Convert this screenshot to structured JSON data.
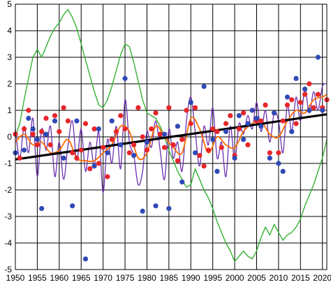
{
  "chart_data": {
    "type": "line",
    "title": "",
    "xlabel": "",
    "ylabel": "",
    "xlim": [
      1950,
      2021
    ],
    "ylim": [
      -5,
      5
    ],
    "grid": true,
    "x_ticks": [
      "1950",
      "1955",
      "1960",
      "1965",
      "1970",
      "1975",
      "1980",
      "1985",
      "1990",
      "1995",
      "2000",
      "2005",
      "2010",
      "2015",
      "2020"
    ],
    "y_ticks": [
      "5",
      "4",
      "3",
      "2",
      "1",
      "0",
      "-1",
      "-2",
      "-3",
      "-4",
      "-5"
    ],
    "colors": {
      "green": "#33b233",
      "purple": "#6b2fb0",
      "orange": "#ff6a00",
      "red": "#e8262a",
      "blue": "#2f49b5",
      "trend": "#000000",
      "grid": "#000000"
    },
    "series": [
      {
        "style": "line-green",
        "x": [
          1950,
          1951,
          1952,
          1953,
          1954,
          1955,
          1956,
          1957,
          1958,
          1959,
          1960,
          1961,
          1962,
          1963,
          1964,
          1965,
          1966,
          1967,
          1968,
          1969,
          1970,
          1971,
          1972,
          1973,
          1974,
          1975,
          1976,
          1977,
          1978,
          1979,
          1980,
          1981,
          1982,
          1983,
          1984,
          1985,
          1986,
          1987,
          1988,
          1989,
          1990,
          1991,
          1992,
          1993,
          1994,
          1995,
          1996,
          1997,
          1998,
          1999,
          2000,
          2001,
          2002,
          2003,
          2004,
          2005,
          2006,
          2007,
          2008,
          2009,
          2010,
          2011,
          2012,
          2013,
          2014,
          2015,
          2016,
          2017,
          2018,
          2019,
          2020,
          2021
        ],
        "y": [
          0.0,
          0.5,
          1.4,
          2.2,
          3.0,
          3.3,
          3.0,
          3.4,
          3.8,
          4.1,
          4.3,
          4.6,
          4.8,
          4.5,
          4.1,
          3.5,
          2.9,
          2.3,
          1.7,
          1.2,
          1.1,
          1.4,
          1.9,
          2.5,
          3.1,
          3.5,
          3.4,
          2.8,
          2.1,
          1.4,
          0.9,
          0.8,
          0.7,
          0.4,
          0.0,
          -0.5,
          -0.9,
          -1.3,
          -1.6,
          -1.9,
          -1.8,
          -1.2,
          -1.6,
          -2.0,
          -2.3,
          -2.7,
          -3.2,
          -3.6,
          -4.0,
          -4.3,
          -4.7,
          -4.5,
          -4.3,
          -4.5,
          -4.6,
          -4.3,
          -3.8,
          -3.4,
          -3.7,
          -3.3,
          -3.6,
          -3.9,
          -3.7,
          -3.6,
          -3.4,
          -3.1,
          -2.6,
          -2.2,
          -1.8,
          -1.3,
          -0.8,
          -0.1
        ]
      },
      {
        "style": "line-purple",
        "x": [
          1950,
          1951,
          1952,
          1953,
          1954,
          1955,
          1956,
          1957,
          1958,
          1959,
          1960,
          1961,
          1962,
          1963,
          1964,
          1965,
          1966,
          1967,
          1968,
          1969,
          1970,
          1971,
          1972,
          1973,
          1974,
          1975,
          1976,
          1977,
          1978,
          1979,
          1980,
          1981,
          1982,
          1983,
          1984,
          1985,
          1986,
          1987,
          1988,
          1989,
          1990,
          1991,
          1992,
          1993,
          1994,
          1995,
          1996,
          1997,
          1998,
          1999,
          2000,
          2001,
          2002,
          2003,
          2004,
          2005,
          2006,
          2007,
          2008,
          2009,
          2010,
          2011,
          2012,
          2013,
          2014,
          2015,
          2016,
          2017,
          2018,
          2019,
          2020,
          2021
        ],
        "y": [
          0.3,
          -0.8,
          0.4,
          -0.6,
          0.7,
          -1.5,
          0.3,
          -0.5,
          0.4,
          -1.5,
          -0.2,
          -1.6,
          -0.3,
          0.6,
          -0.9,
          0.3,
          -1.3,
          -0.2,
          -1.1,
          0.2,
          -2.1,
          -0.1,
          -1.0,
          0.4,
          -1.2,
          1.4,
          -0.2,
          -0.7,
          -1.8,
          -1.3,
          0.2,
          -0.4,
          0.6,
          -0.5,
          -1.6,
          0.3,
          -0.8,
          -0.2,
          -1.3,
          0.6,
          1.5,
          0.2,
          -1.1,
          0.4,
          -0.3,
          1.1,
          -0.8,
          -0.2,
          -1.5,
          0.4,
          -0.9,
          0.5,
          0.1,
          0.8,
          0.3,
          1.3,
          0.2,
          1.0,
          -0.2,
          0.9,
          0.6,
          -0.6,
          1.2,
          0.2,
          1.5,
          0.6,
          1.8,
          0.9,
          1.7,
          1.0,
          1.9,
          2.0
        ]
      },
      {
        "style": "line-orange",
        "x": [
          1950,
          1952,
          1954,
          1956,
          1958,
          1960,
          1962,
          1964,
          1966,
          1968,
          1970,
          1972,
          1974,
          1976,
          1978,
          1980,
          1982,
          1984,
          1986,
          1988,
          1990,
          1992,
          1994,
          1996,
          1998,
          2000,
          2002,
          2004,
          2006,
          2008,
          2010,
          2012,
          2014,
          2016,
          2018,
          2020,
          2021
        ],
        "y": [
          -0.2,
          0.1,
          -0.3,
          -0.2,
          -0.6,
          -0.5,
          -0.1,
          -0.8,
          -0.9,
          -0.9,
          -0.6,
          -0.3,
          0.4,
          0.2,
          -0.8,
          -0.6,
          0.4,
          0.0,
          -0.4,
          -0.6,
          0.7,
          0.3,
          -0.6,
          0.0,
          -0.3,
          -0.4,
          0.2,
          0.5,
          0.6,
          0.1,
          0.0,
          0.6,
          1.0,
          0.9,
          1.4,
          1.5,
          1.6
        ]
      },
      {
        "style": "trend-black",
        "x": [
          1950,
          2021
        ],
        "y": [
          -0.85,
          0.85
        ]
      },
      {
        "style": "dots-red",
        "x": [
          1950,
          1951,
          1952,
          1953,
          1954,
          1955,
          1956,
          1957,
          1958,
          1959,
          1960,
          1961,
          1962,
          1963,
          1964,
          1965,
          1966,
          1967,
          1968,
          1969,
          1970,
          1971,
          1972,
          1973,
          1974,
          1975,
          1976,
          1977,
          1978,
          1979,
          1980,
          1981,
          1982,
          1983,
          1984,
          1985,
          1986,
          1987,
          1988,
          1989,
          1990,
          1991,
          1992,
          1993,
          1994,
          1995,
          1996,
          1997,
          1998,
          1999,
          2000,
          2001,
          2002,
          2003,
          2004,
          2005,
          2006,
          2007,
          2008,
          2009,
          2010,
          2011,
          2012,
          2013,
          2014,
          2015,
          2016,
          2017,
          2018,
          2019,
          2020,
          2021
        ],
        "y": [
          0.1,
          -0.8,
          0.3,
          1.0,
          0.1,
          -0.3,
          0.2,
          0.7,
          -0.3,
          0.8,
          0.2,
          1.1,
          0.6,
          -0.6,
          -0.8,
          -0.5,
          0.5,
          -1.2,
          0.3,
          -1.0,
          -0.4,
          -1.5,
          -0.1,
          0.2,
          0.8,
          0.3,
          -0.6,
          -0.3,
          1.1,
          0.0,
          -0.5,
          0.3,
          0.9,
          0.1,
          -0.4,
          1.1,
          -0.3,
          -0.9,
          -0.1,
          1.0,
          0.5,
          1.1,
          -0.7,
          -1.1,
          -0.5,
          0.3,
          0.2,
          -0.4,
          0.5,
          0.8,
          -0.7,
          0.3,
          0.9,
          -0.3,
          1.0,
          0.6,
          0.6,
          1.2,
          -0.6,
          0.9,
          -0.6,
          0.6,
          1.2,
          1.4,
          0.5,
          1.3,
          1.6,
          2.0,
          1.1,
          1.6,
          1.1,
          1.4
        ]
      },
      {
        "style": "dots-blue",
        "x": [
          1950,
          1952,
          1953,
          1954,
          1955,
          1956,
          1957,
          1959,
          1961,
          1963,
          1964,
          1966,
          1968,
          1969,
          1971,
          1972,
          1974,
          1975,
          1977,
          1979,
          1980,
          1982,
          1984,
          1985,
          1987,
          1988,
          1990,
          1991,
          1993,
          1995,
          1996,
          1998,
          2000,
          2001,
          2002,
          2003,
          2004,
          2005,
          2006,
          2008,
          2009,
          2010,
          2011,
          2012,
          2013,
          2014,
          2016,
          2017,
          2019,
          2020
        ],
        "y": [
          -0.6,
          -0.5,
          0.7,
          0.3,
          -0.1,
          -2.7,
          0.1,
          0.6,
          -0.8,
          -2.6,
          0.6,
          -4.6,
          -1.1,
          0.3,
          -0.6,
          0.6,
          -0.3,
          2.2,
          -0.7,
          -2.8,
          -0.2,
          -2.6,
          0.1,
          -2.7,
          0.4,
          -1.7,
          1.3,
          -0.6,
          1.9,
          -0.1,
          -1.3,
          0.2,
          -0.8,
          0.8,
          -0.1,
          0.5,
          1.0,
          0.7,
          0.4,
          -0.8,
          0.9,
          -1.0,
          -1.3,
          1.5,
          0.2,
          2.2,
          1.8,
          1.0,
          3.0,
          1.0
        ]
      }
    ]
  }
}
